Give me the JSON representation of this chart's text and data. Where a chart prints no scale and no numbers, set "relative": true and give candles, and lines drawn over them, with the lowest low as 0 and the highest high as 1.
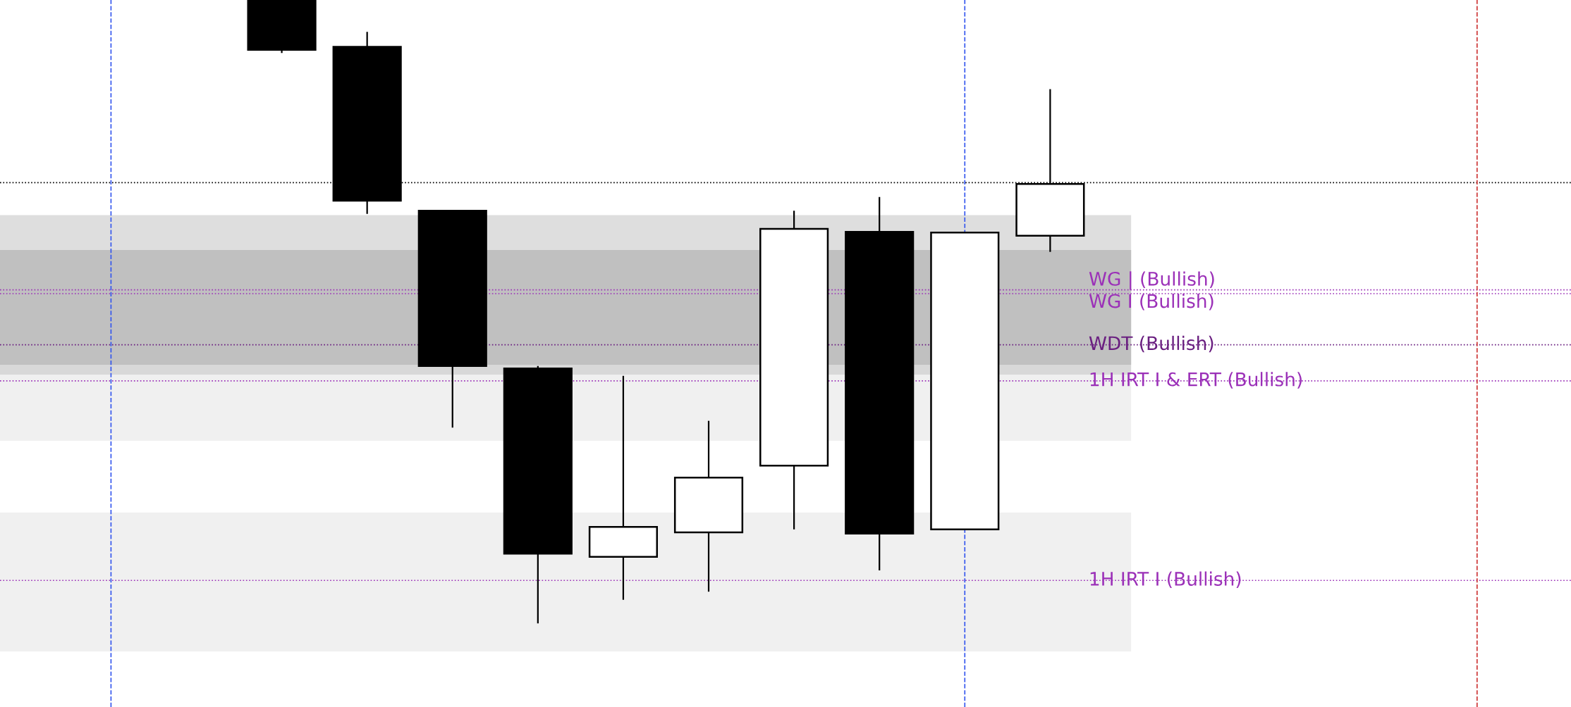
{
  "chart_data": {
    "type": "candlestick",
    "relative": true,
    "categories": [
      null,
      null,
      null,
      null,
      null,
      null,
      null,
      null,
      null,
      null
    ],
    "ohlc": [
      [
        1.0,
        1.0,
        0.915,
        0.92
      ],
      [
        0.925,
        0.949,
        0.657,
        0.678
      ],
      [
        0.662,
        0.662,
        0.314,
        0.413
      ],
      [
        0.409,
        0.413,
        0.0,
        0.112
      ],
      [
        0.107,
        0.397,
        0.038,
        0.155
      ],
      [
        0.146,
        0.325,
        0.051,
        0.234
      ],
      [
        0.253,
        0.662,
        0.151,
        0.633
      ],
      [
        0.628,
        0.684,
        0.085,
        0.144
      ],
      [
        0.151,
        0.627,
        0.151,
        0.627
      ],
      [
        0.622,
        0.857,
        0.596,
        0.705
      ]
    ],
    "tick_labels": false,
    "grid": false,
    "ref_lines": [
      {
        "axis": "y",
        "value": 0.707,
        "color": "#000000",
        "line_style": "dotted"
      },
      {
        "axis": "y",
        "value": 0.535,
        "label": "WG | (Bullish)",
        "color": "#9b30b8",
        "line_style": "dotted"
      },
      {
        "axis": "y",
        "value": 0.529,
        "label": "WG I (Bullish)",
        "color": "#9b30b8",
        "line_style": "dotted"
      },
      {
        "axis": "y",
        "value": 0.447,
        "label": "WDT (Bullish)",
        "color": "#6a1f80",
        "line_style": "dotted"
      },
      {
        "axis": "y",
        "value": 0.389,
        "label": "1H IRT I & ERT (Bullish)",
        "color": "#9b30b8",
        "line_style": "dotted"
      },
      {
        "axis": "y",
        "value": 0.069,
        "label": "1H IRT I (Bullish)",
        "color": "#9b30b8",
        "line_style": "dotted"
      }
    ],
    "bands": [
      {
        "axis": "y",
        "from": 0.293,
        "to": 0.599,
        "color": "#e6e6e6"
      },
      {
        "axis": "y",
        "from": 0.399,
        "to": 0.655,
        "color": "#c8c8c8"
      },
      {
        "axis": "y",
        "from": 0.415,
        "to": 0.599,
        "color": "#b0b0b0"
      },
      {
        "axis": "y",
        "from": -0.045,
        "to": 0.178,
        "color": "#e6e6e6"
      }
    ]
  }
}
